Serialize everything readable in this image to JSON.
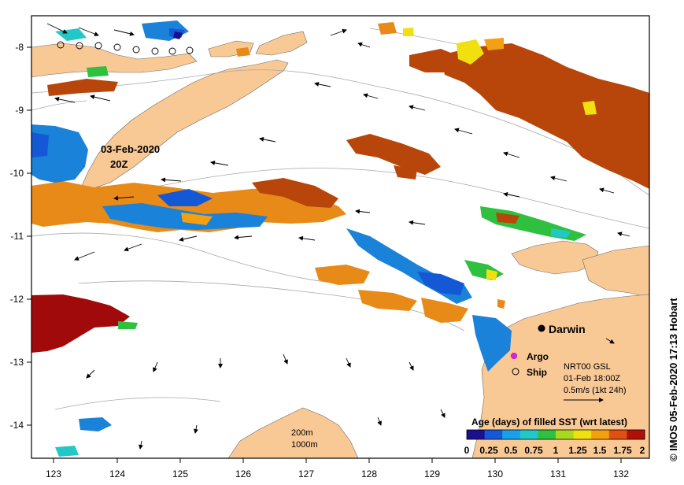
{
  "credit": "© IMOS 05-Feb-2020 17:13 Hobart",
  "map": {
    "axes": {
      "lon_ticks": [
        "123",
        "124",
        "125",
        "126",
        "127",
        "128",
        "129",
        "130",
        "131",
        "132"
      ],
      "lat_ticks": [
        "-8",
        "-9",
        "-10",
        "-11",
        "-12",
        "-13",
        "-14"
      ]
    },
    "annotations": {
      "date_line1": "03-Feb-2020",
      "date_line2": "20Z",
      "city": "Darwin",
      "argo_label": "Argo",
      "ship_label": "Ship",
      "info_line1": "NRT00 GSL",
      "info_line2": "01-Feb 18:00Z",
      "info_line3": "0.5m/s (1kt 24h)",
      "contour_200": "200m",
      "contour_1000": "1000m"
    },
    "colorbar": {
      "title": "Age (days) of filled SST (wrt latest)",
      "labels": [
        "0",
        "0.25",
        "0.5",
        "0.75",
        "1",
        "1.25",
        "1.5",
        "1.75",
        "2"
      ],
      "colors": [
        "#1a0f8c",
        "#1458d6",
        "#1aa0e6",
        "#22c8c8",
        "#30c040",
        "#a8d820",
        "#f0e010",
        "#f4a010",
        "#e05010",
        "#b01008"
      ]
    },
    "colors": {
      "land": "#f9c995",
      "sst_brown": "#b8460a",
      "sst_darkred": "#a00a0a",
      "sst_orange": "#e88a18",
      "sst_blue": "#1a82d8",
      "argo": "#e020e0"
    }
  }
}
